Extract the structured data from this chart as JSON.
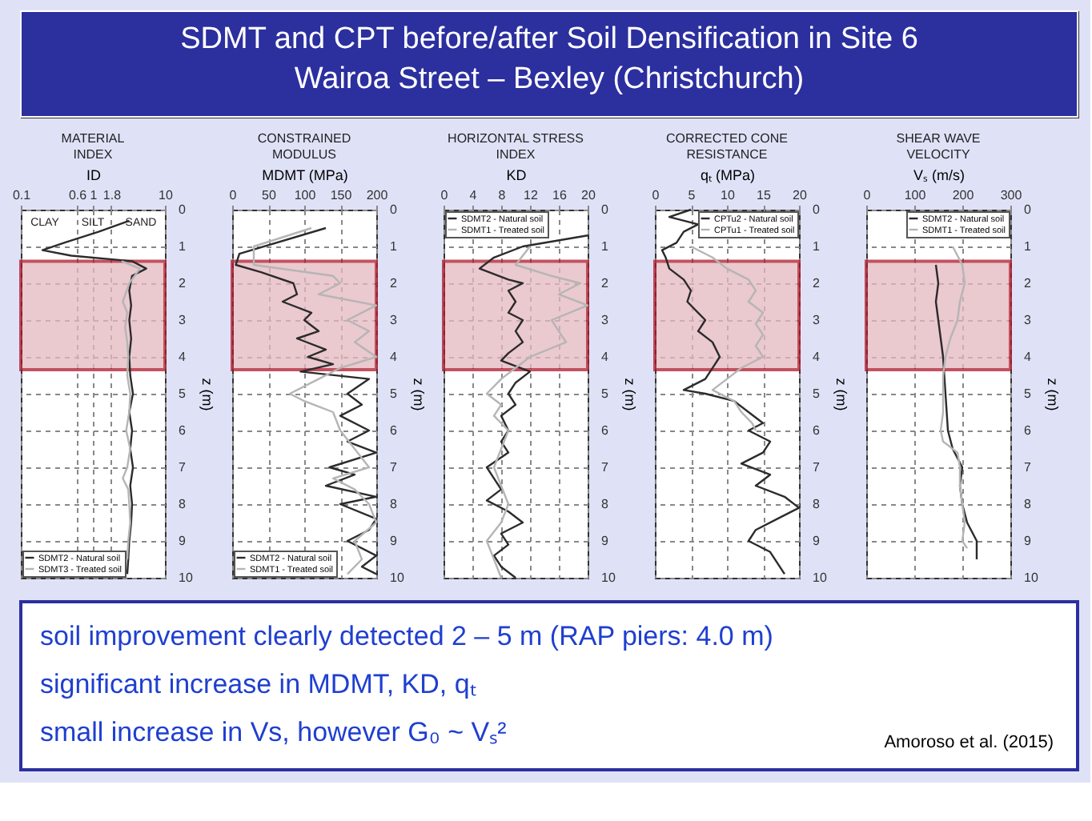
{
  "chart_data": [
    {
      "type": "other",
      "title": "SDMT and CPT before/after Soil Densification in Site 6\nWairoa Street – Bexley (Christchurch)"
    },
    {
      "type": "line",
      "title": "MATERIAL\nINDEX",
      "xlabel": "ID",
      "ylabel": "z (m)",
      "log": "x",
      "xlim": [
        0.1,
        10
      ],
      "xticks": [
        0.1,
        0.6,
        1,
        1.8,
        10
      ],
      "ylim": [
        10,
        0
      ],
      "yticks": [
        0,
        1,
        2,
        3,
        4,
        5,
        6,
        7,
        8,
        9,
        10
      ],
      "grid": true,
      "legend": "bottom left",
      "annotations": [
        "CLAY",
        "SILT",
        "SAND"
      ],
      "bands": [
        {
          "axis": "y",
          "from": 1.4,
          "to": 4.35,
          "color": "#e3b7c0"
        }
      ],
      "series": [
        {
          "name": "SDMT2 - Natural soil",
          "color": "#2b2b2b",
          "x": [
            3.2,
            1.2,
            0.4,
            0.2,
            0.5,
            3.5,
            5.5,
            3.5,
            3.2,
            3.4,
            3.2,
            3.4,
            3.2,
            3.3,
            3.6,
            3.2,
            3.5,
            3.3,
            3.6,
            3.3,
            3.5,
            3.4,
            3.2,
            3.1,
            3.0
          ],
          "values": [
            0.3,
            0.6,
            0.9,
            1.1,
            1.25,
            1.4,
            1.6,
            1.8,
            2.2,
            2.6,
            3.0,
            3.5,
            4.0,
            4.5,
            5.0,
            5.5,
            6.0,
            6.5,
            7.0,
            7.5,
            8.0,
            8.5,
            9.0,
            9.5,
            9.9
          ]
        },
        {
          "name": "SDMT3 - Treated soil",
          "color": "#b5b5b5",
          "x": [
            2.5,
            4.5,
            3.2,
            2.6,
            3.0,
            2.8,
            3.0,
            3.1,
            3.0,
            3.3,
            3.2,
            2.9,
            3.3,
            3.0,
            2.6,
            3.1,
            3.2,
            3.3,
            3.1,
            3.0
          ],
          "values": [
            1.4,
            1.6,
            2.0,
            2.5,
            2.8,
            3.2,
            3.6,
            4.0,
            4.5,
            5.0,
            5.5,
            6.0,
            6.5,
            7.0,
            7.3,
            7.6,
            8.0,
            8.5,
            9.0,
            9.5
          ]
        }
      ]
    },
    {
      "type": "line",
      "title": "CONSTRAINED\nMODULUS",
      "xlabel": "MDMT (MPa)",
      "ylabel": "z (m)",
      "xlim": [
        0,
        200
      ],
      "xticks": [
        0,
        50,
        100,
        150,
        200
      ],
      "ylim": [
        10,
        0
      ],
      "yticks": [
        0,
        1,
        2,
        3,
        4,
        5,
        6,
        7,
        8,
        9,
        10
      ],
      "grid": true,
      "legend": "bottom left",
      "bands": [
        {
          "axis": "y",
          "from": 1.4,
          "to": 4.35,
          "color": "#e3b7c0"
        }
      ],
      "series": [
        {
          "name": "SDMT2 - Natural soil",
          "color": "#2b2b2b",
          "x": [
            130,
            10,
            5,
            40,
            85,
            90,
            70,
            110,
            100,
            120,
            90,
            130,
            105,
            140,
            95,
            190,
            160,
            180,
            150,
            190,
            160,
            200,
            135,
            170,
            130,
            200,
            150,
            200,
            190,
            160,
            200,
            180,
            200
          ],
          "values": [
            0.5,
            1.2,
            1.5,
            1.7,
            2.0,
            2.3,
            2.5,
            2.8,
            3.0,
            3.3,
            3.5,
            3.8,
            4.0,
            4.2,
            4.4,
            4.6,
            5.0,
            5.3,
            5.6,
            6.0,
            6.3,
            6.6,
            7.0,
            7.2,
            7.5,
            7.8,
            8.0,
            8.4,
            8.7,
            9.0,
            9.4,
            9.7,
            9.9
          ]
        },
        {
          "name": "SDMT1 - Treated soil",
          "color": "#b5b5b5",
          "x": [
            110,
            30,
            30,
            140,
            150,
            120,
            200,
            160,
            190,
            170,
            200,
            150,
            120,
            80,
            100,
            140,
            150,
            170,
            190,
            140,
            170,
            190,
            200,
            170,
            180,
            160
          ],
          "values": [
            0.5,
            1.0,
            1.5,
            1.8,
            2.0,
            2.3,
            2.6,
            3.0,
            3.3,
            3.6,
            4.0,
            4.3,
            4.6,
            5.0,
            5.2,
            5.5,
            6.0,
            6.5,
            7.0,
            7.3,
            7.6,
            8.0,
            8.5,
            9.0,
            9.5,
            9.9
          ]
        }
      ]
    },
    {
      "type": "line",
      "title": "HORIZONTAL STRESS\nINDEX",
      "xlabel": "KD",
      "ylabel": "z (m)",
      "xlim": [
        0,
        20
      ],
      "xticks": [
        0,
        4,
        8,
        12,
        16,
        20
      ],
      "ylim": [
        10,
        0
      ],
      "yticks": [
        0,
        1,
        2,
        3,
        4,
        5,
        6,
        7,
        8,
        9,
        10
      ],
      "grid": true,
      "legend": "top left",
      "bands": [
        {
          "axis": "y",
          "from": 1.4,
          "to": 4.35,
          "color": "#e3b7c0"
        }
      ],
      "series": [
        {
          "name": "SDMT2 - Natural soil",
          "color": "#2b2b2b",
          "x": [
            20,
            11,
            7,
            5,
            9,
            11,
            9,
            10,
            9,
            11,
            10,
            11,
            9,
            8,
            12,
            10,
            9,
            10,
            8,
            9,
            8,
            9,
            6,
            7,
            8,
            6,
            9,
            11,
            8,
            9,
            7,
            8,
            10
          ],
          "values": [
            0.7,
            1.0,
            1.3,
            1.6,
            1.9,
            2.0,
            2.2,
            2.5,
            2.8,
            3.0,
            3.3,
            3.6,
            3.9,
            4.1,
            4.4,
            4.7,
            5.0,
            5.3,
            5.6,
            6.0,
            6.3,
            6.6,
            7.0,
            7.3,
            7.6,
            7.9,
            8.2,
            8.5,
            8.8,
            9.1,
            9.4,
            9.7,
            10.0
          ]
        },
        {
          "name": "SDMT1 - Treated soil",
          "color": "#b5b5b5",
          "x": [
            12,
            10,
            15,
            19,
            16,
            20,
            15,
            16,
            17,
            12,
            10,
            8,
            6,
            8,
            7,
            9,
            8,
            7,
            8,
            9,
            8,
            6,
            7,
            8
          ],
          "values": [
            1.0,
            1.5,
            1.8,
            2.0,
            2.3,
            2.6,
            3.0,
            3.3,
            3.6,
            4.0,
            4.3,
            4.6,
            5.0,
            5.3,
            5.6,
            6.0,
            6.5,
            7.0,
            7.5,
            8.0,
            8.5,
            9.0,
            9.5,
            10.0
          ]
        }
      ]
    },
    {
      "type": "line",
      "title": "CORRECTED CONE\nRESISTANCE",
      "xlabel": "qₜ (MPa)",
      "ylabel": "z (m)",
      "xlim": [
        0,
        20
      ],
      "xticks": [
        0,
        5,
        10,
        15,
        20
      ],
      "ylim": [
        10,
        0
      ],
      "yticks": [
        0,
        1,
        2,
        3,
        4,
        5,
        6,
        7,
        8,
        9,
        10
      ],
      "grid": true,
      "legend": "top right",
      "bands": [
        {
          "axis": "y",
          "from": 1.4,
          "to": 4.35,
          "color": "#e3b7c0"
        }
      ],
      "series": [
        {
          "name": "CPTu2 - Natural soil",
          "color": "#2b2b2b",
          "x": [
            5,
            2,
            6,
            4,
            3,
            1,
            1.5,
            2,
            4,
            5,
            4.5,
            6,
            7,
            6,
            8,
            9,
            8,
            7,
            4,
            7,
            11,
            13,
            15,
            13,
            16,
            15,
            12,
            16,
            14,
            18,
            20,
            17,
            14,
            13,
            16,
            17,
            18
          ],
          "values": [
            0.0,
            0.2,
            0.4,
            0.6,
            0.9,
            1.1,
            1.3,
            1.6,
            1.9,
            2.2,
            2.5,
            2.8,
            3.0,
            3.3,
            3.6,
            4.0,
            4.3,
            4.6,
            4.9,
            5.0,
            5.2,
            5.5,
            5.8,
            6.0,
            6.3,
            6.6,
            6.9,
            7.2,
            7.5,
            7.8,
            8.1,
            8.4,
            8.7,
            9.0,
            9.3,
            9.6,
            9.9
          ]
        },
        {
          "name": "CPTu1 - Treated soil",
          "color": "#b5b5b5",
          "x": [
            5,
            8,
            10,
            13,
            14,
            13,
            15,
            14,
            15,
            14,
            15,
            12,
            10,
            8,
            11,
            12,
            13.5,
            14
          ],
          "values": [
            1.0,
            1.3,
            1.6,
            1.9,
            2.2,
            2.5,
            2.8,
            3.1,
            3.4,
            3.7,
            4.0,
            4.3,
            4.6,
            4.9,
            5.2,
            5.5,
            5.8,
            6.0
          ]
        }
      ]
    },
    {
      "type": "line",
      "title": "SHEAR WAVE\nVELOCITY",
      "xlabel": "Vₛ (m/s)",
      "ylabel": "z (m)",
      "xlim": [
        0,
        300
      ],
      "xticks": [
        0,
        100,
        200,
        300
      ],
      "ylim": [
        10,
        0
      ],
      "yticks": [
        0,
        1,
        2,
        3,
        4,
        5,
        6,
        7,
        8,
        9,
        10
      ],
      "grid": true,
      "legend": "top right",
      "bands": [
        {
          "axis": "y",
          "from": 1.4,
          "to": 4.35,
          "color": "#e3b7c0"
        }
      ],
      "series": [
        {
          "name": "SDMT2 - Natural soil",
          "color": "#2b2b2b",
          "x": [
            145,
            150,
            145,
            150,
            155,
            160,
            165,
            170,
            180,
            200,
            195,
            200,
            210,
            230,
            230
          ],
          "values": [
            1.5,
            2.0,
            2.5,
            3.0,
            3.5,
            4.0,
            5.0,
            6.0,
            6.5,
            7.0,
            7.5,
            8.0,
            8.5,
            9.0,
            9.5
          ]
        },
        {
          "name": "SDMT1 - Treated soil",
          "color": "#b5b5b5",
          "x": [
            180,
            200,
            205,
            195,
            190,
            175,
            165,
            160,
            160,
            160,
            155,
            160,
            190,
            195,
            195,
            200,
            205,
            200,
            210
          ],
          "values": [
            1.0,
            1.5,
            2.0,
            2.5,
            3.0,
            3.5,
            4.0,
            4.5,
            5.0,
            5.5,
            6.0,
            6.3,
            6.6,
            7.0,
            7.5,
            8.0,
            8.5,
            9.0,
            9.2
          ]
        }
      ]
    },
    {
      "type": "other",
      "annotations": [
        "soil improvement clearly detected 2 – 5 m (RAP piers: 4.0 m)",
        "significant increase in MDMT, KD, qₜ",
        "small increase in Vs, however G₀ ~ Vₛ²",
        "Amoroso et al. (2015)"
      ]
    }
  ]
}
